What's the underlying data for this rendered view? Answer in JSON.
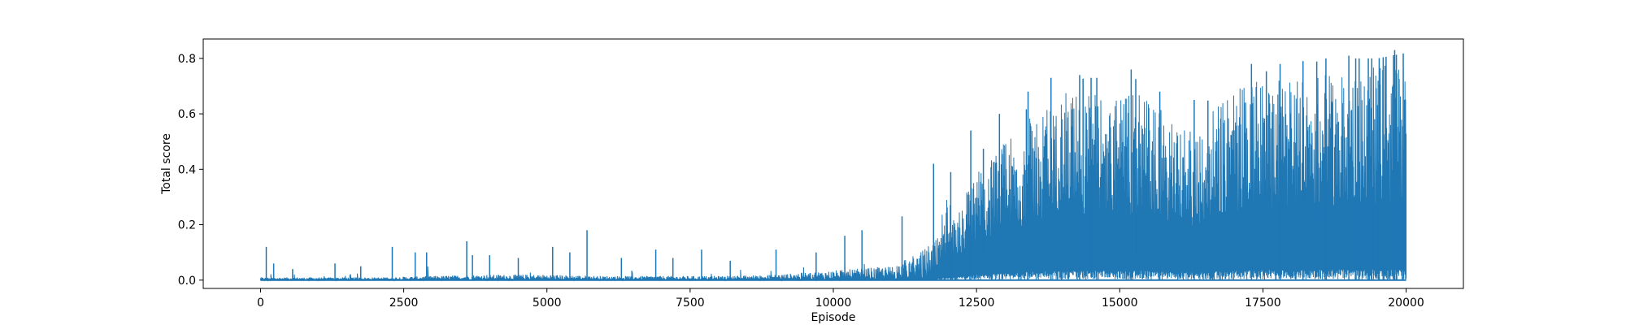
{
  "chart_data": {
    "type": "line",
    "title": "",
    "xlabel": "Episode",
    "ylabel": "Total score",
    "xlim": [
      -1000,
      21000
    ],
    "ylim": [
      -0.03,
      0.87
    ],
    "x_ticks": [
      0,
      2500,
      5000,
      7500,
      10000,
      12500,
      15000,
      17500,
      20000
    ],
    "x_tick_labels": [
      "0",
      "2500",
      "5000",
      "7500",
      "10000",
      "12500",
      "15000",
      "17500",
      "20000"
    ],
    "y_ticks": [
      0.0,
      0.2,
      0.4,
      0.6,
      0.8
    ],
    "y_tick_labels": [
      "0.0",
      "0.2",
      "0.4",
      "0.6",
      "0.8"
    ],
    "grid": false,
    "legend": "none",
    "color": "#1f77b4",
    "series": [
      {
        "x": [
          0,
          1000,
          2000,
          3000,
          4000,
          5000,
          6000,
          7000,
          8000,
          9000,
          10000,
          11000,
          11500,
          12000,
          12500,
          13000,
          13500,
          14000,
          14500,
          15000,
          15500,
          16000,
          16500,
          17000,
          17500,
          18000,
          18500,
          19000,
          19500,
          20000
        ],
        "envelope_max": [
          0.05,
          0.03,
          0.05,
          0.08,
          0.09,
          0.08,
          0.06,
          0.06,
          0.05,
          0.07,
          0.1,
          0.15,
          0.3,
          0.36,
          0.45,
          0.55,
          0.64,
          0.72,
          0.73,
          0.72,
          0.73,
          0.6,
          0.64,
          0.74,
          0.75,
          0.78,
          0.79,
          0.8,
          0.8,
          0.82
        ],
        "dense_upper": [
          0.01,
          0.01,
          0.01,
          0.015,
          0.02,
          0.02,
          0.015,
          0.015,
          0.015,
          0.02,
          0.035,
          0.05,
          0.1,
          0.18,
          0.38,
          0.5,
          0.6,
          0.68,
          0.68,
          0.66,
          0.68,
          0.55,
          0.58,
          0.7,
          0.72,
          0.74,
          0.76,
          0.76,
          0.77,
          0.78
        ],
        "spikes": [
          [
            100,
            0.12
          ],
          [
            230,
            0.06
          ],
          [
            560,
            0.04
          ],
          [
            1300,
            0.06
          ],
          [
            1750,
            0.05
          ],
          [
            2300,
            0.12
          ],
          [
            2700,
            0.1
          ],
          [
            2900,
            0.1
          ],
          [
            3600,
            0.14
          ],
          [
            3700,
            0.09
          ],
          [
            4000,
            0.09
          ],
          [
            4500,
            0.08
          ],
          [
            5100,
            0.12
          ],
          [
            5400,
            0.1
          ],
          [
            5700,
            0.18
          ],
          [
            6300,
            0.08
          ],
          [
            6900,
            0.11
          ],
          [
            7200,
            0.08
          ],
          [
            7700,
            0.11
          ],
          [
            8200,
            0.07
          ],
          [
            9000,
            0.11
          ],
          [
            9700,
            0.1
          ],
          [
            10200,
            0.16
          ],
          [
            10500,
            0.18
          ],
          [
            11200,
            0.23
          ],
          [
            11750,
            0.42
          ],
          [
            12050,
            0.39
          ],
          [
            12400,
            0.54
          ],
          [
            12900,
            0.6
          ],
          [
            13400,
            0.68
          ],
          [
            13800,
            0.73
          ],
          [
            14300,
            0.74
          ],
          [
            14600,
            0.73
          ],
          [
            15200,
            0.76
          ],
          [
            15700,
            0.68
          ],
          [
            16300,
            0.65
          ],
          [
            17300,
            0.78
          ],
          [
            17800,
            0.78
          ],
          [
            18200,
            0.79
          ],
          [
            18600,
            0.8
          ],
          [
            19000,
            0.81
          ],
          [
            19400,
            0.8
          ],
          [
            19800,
            0.83
          ]
        ],
        "dips": [
          [
            12620,
            0.1
          ],
          [
            13370,
            0.2
          ],
          [
            14360,
            0.04
          ],
          [
            14500,
            0.01
          ],
          [
            15280,
            0.1
          ],
          [
            16540,
            0.35
          ],
          [
            17560,
            0.3
          ],
          [
            18440,
            0.2
          ],
          [
            19120,
            0.0
          ],
          [
            19180,
            0.0
          ],
          [
            19340,
            0.0
          ],
          [
            19530,
            0.0
          ],
          [
            19600,
            0.0
          ],
          [
            19650,
            0.3
          ],
          [
            19780,
            0.0
          ],
          [
            19830,
            0.0
          ],
          [
            19950,
            0.0
          ]
        ]
      }
    ]
  }
}
